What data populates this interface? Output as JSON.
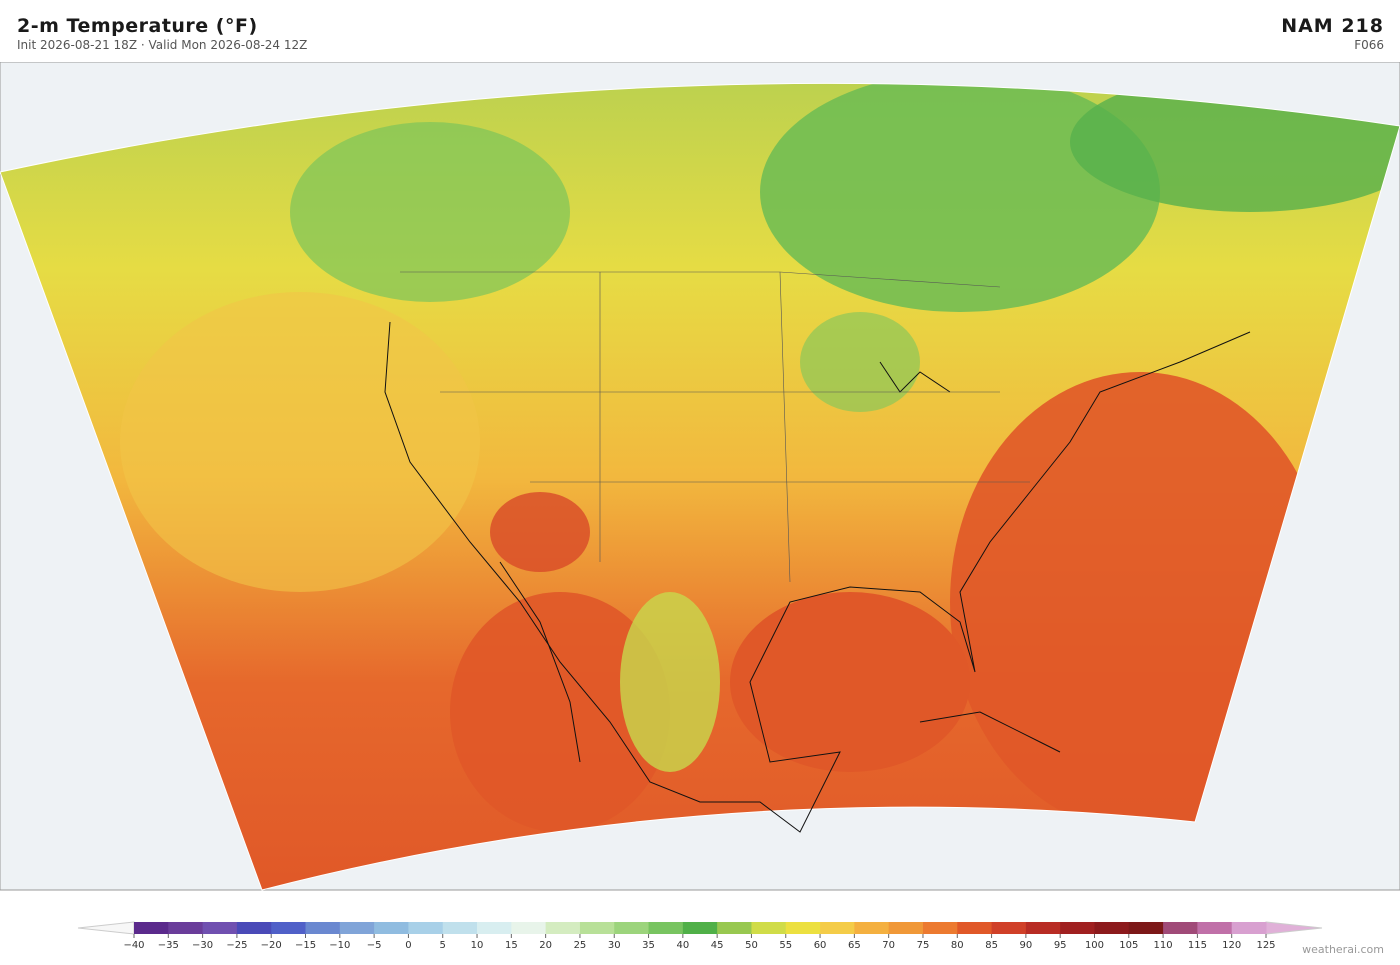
{
  "header": {
    "title": "2-m Temperature  (°F)",
    "subtitle": "Init 2026-08-21 18Z   ·   Valid Mon 2026-08-24 12Z",
    "model": "NAM  218",
    "forecast_hour": "F066"
  },
  "colorbar": {
    "ticks": [
      "−40",
      "−35",
      "−30",
      "−25",
      "−20",
      "−15",
      "−10",
      "−5",
      "0",
      "5",
      "10",
      "15",
      "20",
      "25",
      "30",
      "35",
      "40",
      "45",
      "50",
      "55",
      "60",
      "65",
      "70",
      "75",
      "80",
      "85",
      "90",
      "95",
      "100",
      "105",
      "110",
      "115",
      "120",
      "125"
    ],
    "colors": [
      "#5b2a8c",
      "#6a3d9a",
      "#7050b0",
      "#4a4ab8",
      "#5060c8",
      "#6a88d0",
      "#80a4d8",
      "#90bce0",
      "#a8d0e8",
      "#c0e0ec",
      "#d8eef0",
      "#e8f4ea",
      "#d4ecc0",
      "#b8e098",
      "#9cd47c",
      "#78c460",
      "#50b048",
      "#98c850",
      "#d0dc48",
      "#ece040",
      "#f4cc48",
      "#f4b040",
      "#f09838",
      "#ec7a30",
      "#e05828",
      "#d04028",
      "#b82c24",
      "#a02020",
      "#8c1a1c",
      "#7c1818",
      "#a04a78",
      "#c070a8",
      "#d8a0d0"
    ]
  },
  "footer": {
    "credit": "weatherai.com"
  }
}
